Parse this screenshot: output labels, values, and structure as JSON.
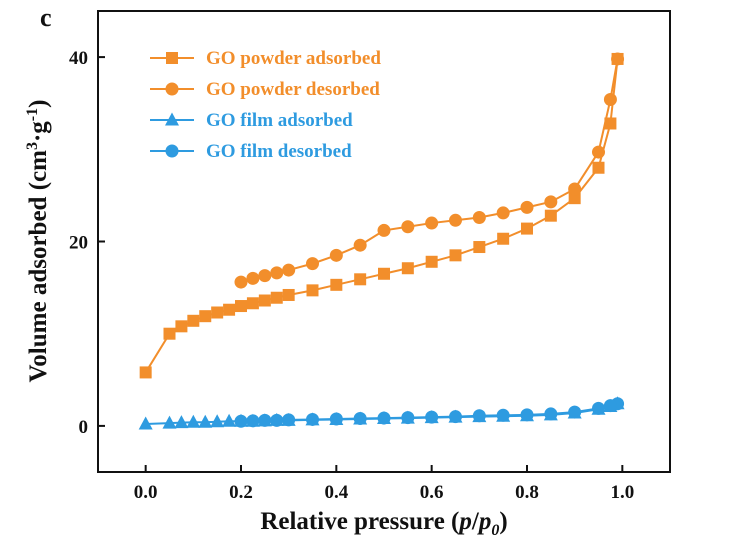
{
  "panel_label": "c",
  "colors": {
    "orange": "#F28E2B",
    "blue": "#2E9BE0",
    "axis": "#111111"
  },
  "chart_data": {
    "type": "line",
    "title": "",
    "xlabel": "Relative pressure (p/p0)",
    "xlabel_parts": {
      "pre": "Relative pressure (",
      "p": "p",
      "slash": "/",
      "p0": "p",
      "sub": "0",
      "post": ")"
    },
    "ylabel": "Volume adsorbed (cm3·g-1)",
    "ylabel_parts": {
      "pre": "Volume adsorbed (cm",
      "sup1": "3",
      "mid": "·g",
      "sup2": "-1",
      "post": ")"
    },
    "xlim": [
      -0.1,
      1.1
    ],
    "ylim": [
      -5,
      45
    ],
    "xticks": [
      "0.0",
      "0.2",
      "0.4",
      "0.6",
      "0.8",
      "1.0"
    ],
    "yticks": [
      "0",
      "20",
      "40"
    ],
    "grid": false,
    "legend_position": "top-left",
    "series": [
      {
        "name": "GO powder adsorbed",
        "color": "#F28E2B",
        "marker": "square",
        "points": [
          [
            0.0,
            5.8
          ],
          [
            0.05,
            10.0
          ],
          [
            0.075,
            10.8
          ],
          [
            0.1,
            11.4
          ],
          [
            0.125,
            11.9
          ],
          [
            0.15,
            12.3
          ],
          [
            0.175,
            12.6
          ],
          [
            0.2,
            13.0
          ],
          [
            0.225,
            13.3
          ],
          [
            0.25,
            13.6
          ],
          [
            0.275,
            13.9
          ],
          [
            0.3,
            14.2
          ],
          [
            0.35,
            14.7
          ],
          [
            0.4,
            15.3
          ],
          [
            0.45,
            15.9
          ],
          [
            0.5,
            16.5
          ],
          [
            0.55,
            17.1
          ],
          [
            0.6,
            17.8
          ],
          [
            0.65,
            18.5
          ],
          [
            0.7,
            19.4
          ],
          [
            0.75,
            20.3
          ],
          [
            0.8,
            21.4
          ],
          [
            0.85,
            22.8
          ],
          [
            0.9,
            24.7
          ],
          [
            0.95,
            28.0
          ],
          [
            0.975,
            32.8
          ],
          [
            0.99,
            39.8
          ]
        ]
      },
      {
        "name": "GO powder desorbed",
        "color": "#F28E2B",
        "marker": "circle",
        "points": [
          [
            0.99,
            39.8
          ],
          [
            0.975,
            35.4
          ],
          [
            0.95,
            29.7
          ],
          [
            0.9,
            25.7
          ],
          [
            0.85,
            24.3
          ],
          [
            0.8,
            23.7
          ],
          [
            0.75,
            23.1
          ],
          [
            0.7,
            22.6
          ],
          [
            0.65,
            22.3
          ],
          [
            0.6,
            22.0
          ],
          [
            0.55,
            21.6
          ],
          [
            0.5,
            21.2
          ],
          [
            0.45,
            19.6
          ],
          [
            0.4,
            18.5
          ],
          [
            0.35,
            17.6
          ],
          [
            0.3,
            16.9
          ],
          [
            0.275,
            16.6
          ],
          [
            0.25,
            16.3
          ],
          [
            0.225,
            16.0
          ],
          [
            0.2,
            15.6
          ]
        ]
      },
      {
        "name": "GO film adsorbed",
        "color": "#2E9BE0",
        "marker": "triangle",
        "points": [
          [
            0.0,
            0.2
          ],
          [
            0.05,
            0.3
          ],
          [
            0.075,
            0.35
          ],
          [
            0.1,
            0.4
          ],
          [
            0.125,
            0.4
          ],
          [
            0.15,
            0.45
          ],
          [
            0.175,
            0.5
          ],
          [
            0.2,
            0.5
          ],
          [
            0.225,
            0.5
          ],
          [
            0.25,
            0.55
          ],
          [
            0.275,
            0.6
          ],
          [
            0.3,
            0.6
          ],
          [
            0.35,
            0.65
          ],
          [
            0.4,
            0.7
          ],
          [
            0.45,
            0.75
          ],
          [
            0.5,
            0.8
          ],
          [
            0.55,
            0.85
          ],
          [
            0.6,
            0.9
          ],
          [
            0.65,
            0.95
          ],
          [
            0.7,
            1.0
          ],
          [
            0.75,
            1.05
          ],
          [
            0.8,
            1.1
          ],
          [
            0.85,
            1.2
          ],
          [
            0.9,
            1.4
          ],
          [
            0.95,
            1.8
          ],
          [
            0.975,
            2.1
          ],
          [
            0.99,
            2.4
          ]
        ]
      },
      {
        "name": "GO film desorbed",
        "color": "#2E9BE0",
        "marker": "circle",
        "points": [
          [
            0.99,
            2.4
          ],
          [
            0.975,
            2.2
          ],
          [
            0.95,
            1.9
          ],
          [
            0.9,
            1.5
          ],
          [
            0.85,
            1.3
          ],
          [
            0.8,
            1.2
          ],
          [
            0.75,
            1.15
          ],
          [
            0.7,
            1.1
          ],
          [
            0.65,
            1.0
          ],
          [
            0.6,
            0.95
          ],
          [
            0.55,
            0.9
          ],
          [
            0.5,
            0.85
          ],
          [
            0.45,
            0.8
          ],
          [
            0.4,
            0.75
          ],
          [
            0.35,
            0.7
          ],
          [
            0.3,
            0.65
          ],
          [
            0.275,
            0.6
          ],
          [
            0.25,
            0.6
          ],
          [
            0.225,
            0.55
          ],
          [
            0.2,
            0.5
          ]
        ]
      }
    ]
  }
}
